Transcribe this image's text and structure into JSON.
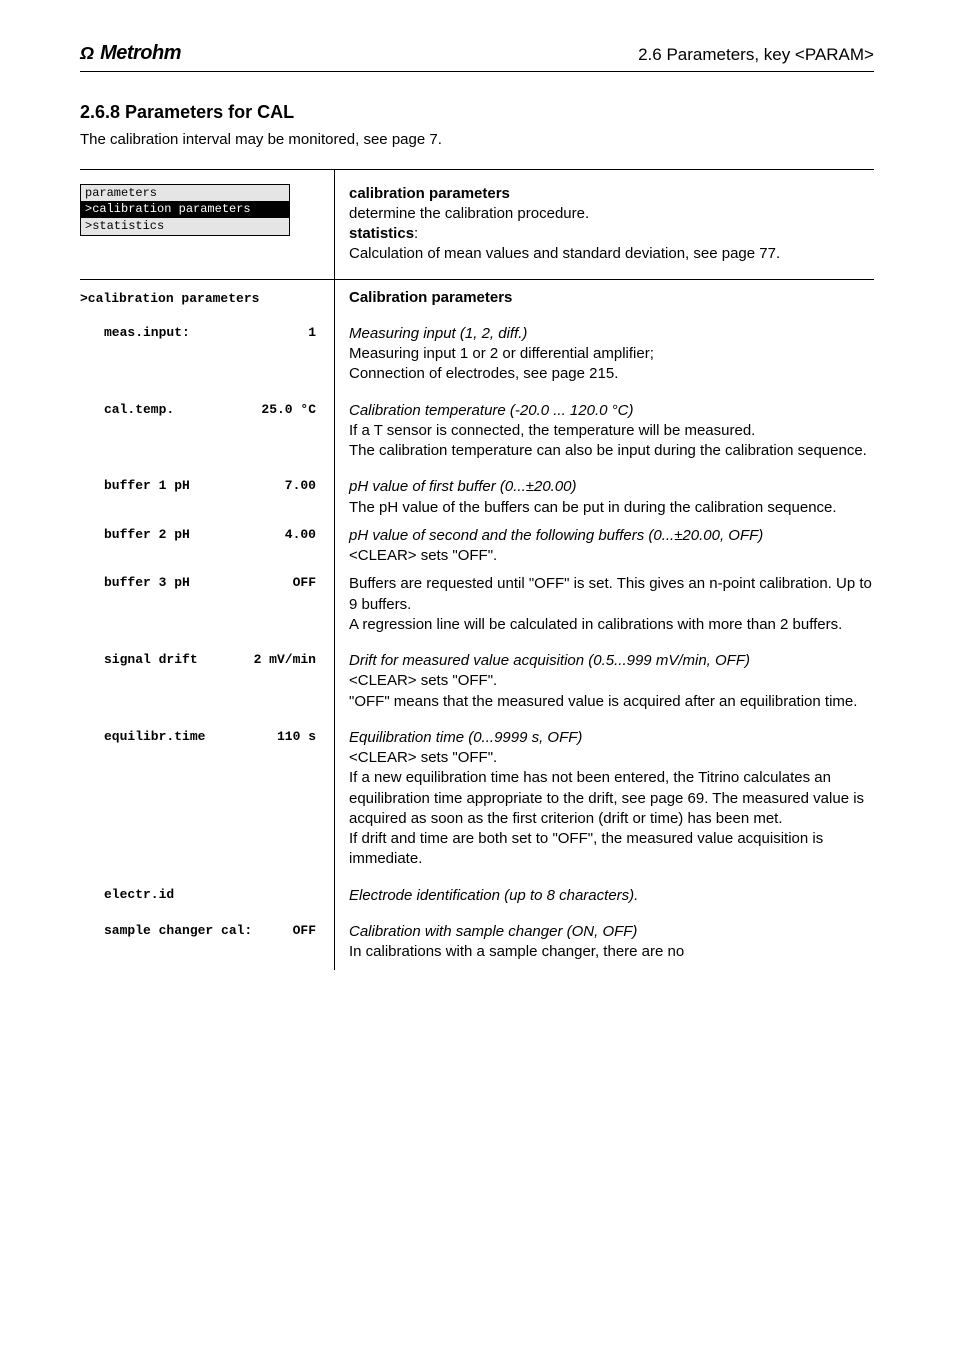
{
  "header": {
    "brand_icon": "Ω",
    "brand_name": "Metrohm",
    "right": "2.6 Parameters, key <PARAM>"
  },
  "section": {
    "title": "2.6.8  Parameters for CAL",
    "subtitle": "The calibration interval may be monitored, see page 7."
  },
  "menu": {
    "line1": "parameters",
    "line2": ">calibration parameters",
    "line3": ">statistics"
  },
  "intro": {
    "cal_title": "calibration parameters",
    "cal_desc": "determine the calibration procedure.",
    "stat_title": "statistics",
    "stat_desc": "Calculation of mean values and standard deviation, see page 77."
  },
  "cal_heading_left": ">calibration parameters",
  "cal_heading_right": "Calibration parameters",
  "rows": {
    "meas": {
      "label": "meas.input:",
      "value": "1",
      "d1": "Measuring input (1, 2, diff.)",
      "d2": "Measuring input 1 or 2 or differential amplifier;",
      "d3": "Connection of electrodes, see page 215."
    },
    "temp": {
      "label": "cal.temp.",
      "value": "25.0 °C",
      "d1": "Calibration temperature (-20.0 ... 120.0 °C)",
      "d2": "If a T sensor is connected, the temperature will be measured.",
      "d3": "The calibration temperature can also be input during the calibration sequence."
    },
    "buf1": {
      "label": "buffer  1 pH",
      "value": "7.00",
      "d1": "pH value of first buffer (0...±20.00)",
      "d2": "The pH value of the buffers can be put in during the calibration sequence."
    },
    "buf2": {
      "label": "buffer  2 pH",
      "value": "4.00",
      "d1": "pH value of second and the following buffers (0...±20.00, OFF)",
      "d2": "<CLEAR> sets \"OFF\"."
    },
    "buf3": {
      "label": "buffer  3 pH",
      "value": "OFF",
      "d1": "Buffers are requested until \"OFF\" is set. This gives an n-point calibration. Up to 9 buffers.",
      "d2": "A regression line will be calculated in calibrations with more than 2 buffers."
    },
    "drift": {
      "label": "signal drift",
      "value": "2 mV/min",
      "d1": "Drift for measured value acquisition (0.5...999 mV/min, OFF)",
      "d2": "<CLEAR> sets \"OFF\".",
      "d3": "\"OFF\" means that the measured value is acquired after an equilibration time."
    },
    "equil": {
      "label": "equilibr.time",
      "value": "110 s",
      "d1": "Equilibration time (0...9999 s, OFF)",
      "d2": "<CLEAR> sets \"OFF\".",
      "d3": "If a new equilibration time has not been entered, the Titrino calculates an equilibration time appropriate to the drift, see page  69. The measured value is acquired as soon as the first criterion (drift or time) has been met.",
      "d4": "If drift and time are both set to \"OFF\", the measured value acquisition is immediate."
    },
    "elid": {
      "label": "electr.id",
      "value": "",
      "d1": "Electrode identification (up to 8 characters)."
    },
    "samp": {
      "label": "sample changer cal:",
      "value": "OFF",
      "d1": "Calibration with sample changer (ON, OFF)",
      "d2": "In calibrations with a sample changer, there are no"
    }
  }
}
